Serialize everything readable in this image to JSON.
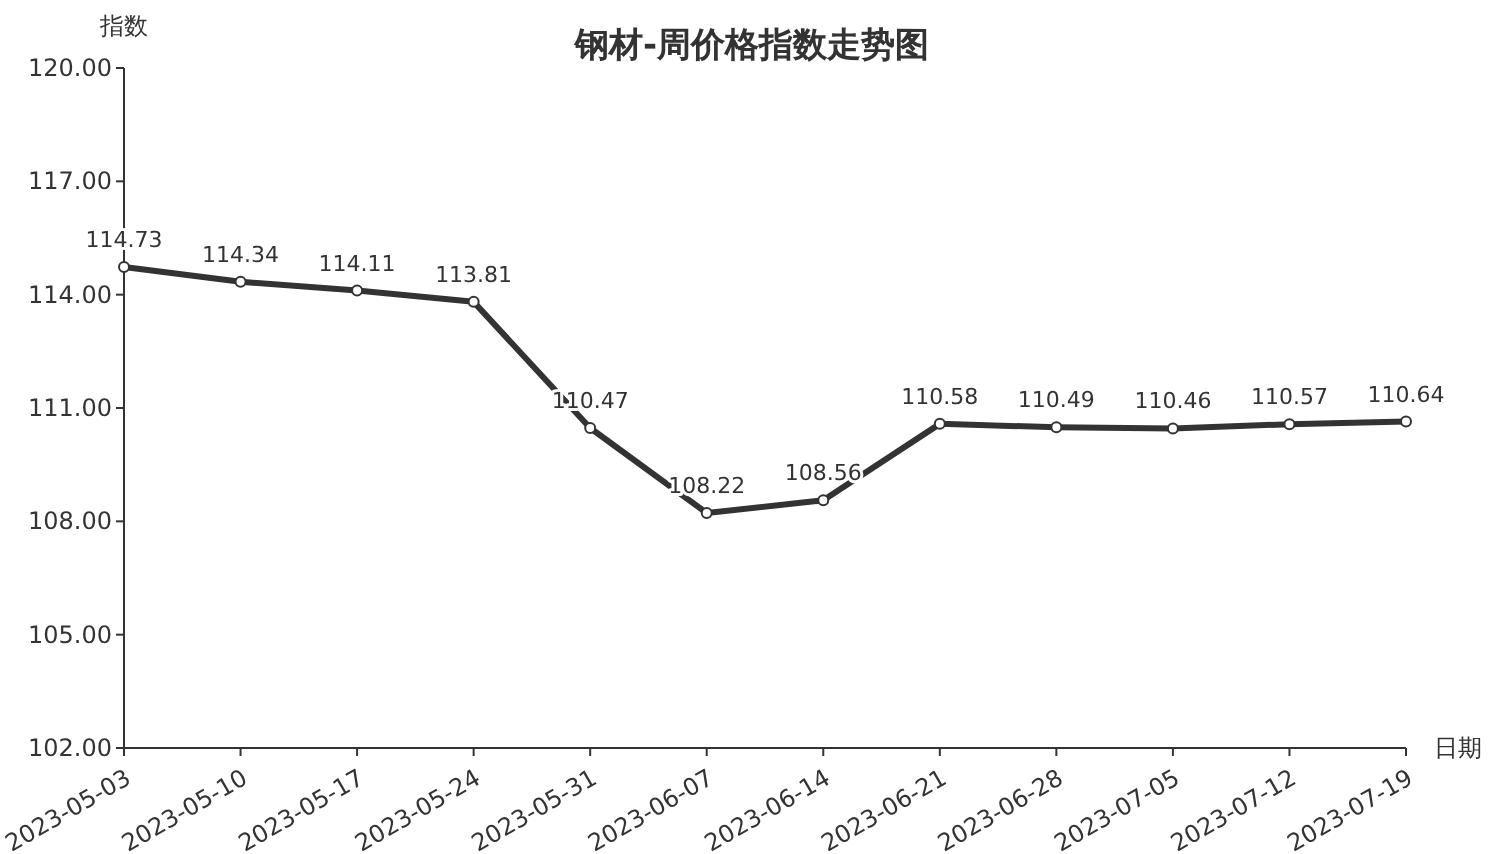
{
  "chart_data": {
    "type": "line",
    "title": "钢材-周价格指数走势图",
    "ylabel": "指数",
    "xlabel": "日期",
    "categories": [
      "2023-05-03",
      "2023-05-10",
      "2023-05-17",
      "2023-05-24",
      "2023-05-31",
      "2023-06-07",
      "2023-06-14",
      "2023-06-21",
      "2023-06-28",
      "2023-07-05",
      "2023-07-12",
      "2023-07-19"
    ],
    "series": [
      {
        "color": "#333333",
        "values": [
          114.73,
          114.34,
          114.11,
          113.81,
          110.47,
          108.22,
          108.56,
          110.58,
          110.49,
          110.46,
          110.57,
          110.64
        ]
      }
    ],
    "ylim": [
      102,
      120
    ],
    "yticks": [
      {
        "value": 102,
        "label": "102.00"
      },
      {
        "value": 105,
        "label": "105.00"
      },
      {
        "value": 108,
        "label": "108.00"
      },
      {
        "value": 111,
        "label": "111.00"
      },
      {
        "value": 114,
        "label": "114.00"
      },
      {
        "value": 117,
        "label": "117.00"
      },
      {
        "value": 120,
        "label": "120.00"
      }
    ],
    "data_labels": true,
    "marker": "circle",
    "line_style": "solid",
    "grid": false
  }
}
